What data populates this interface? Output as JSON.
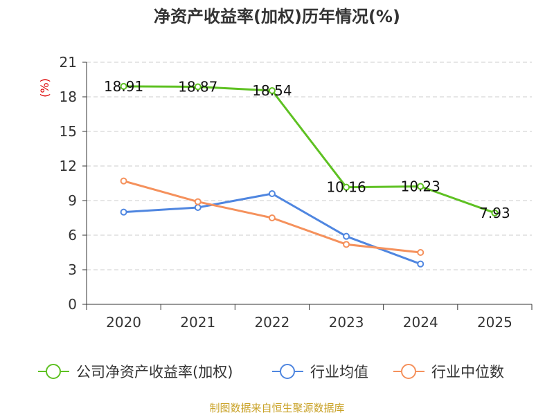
{
  "chart_data": {
    "type": "line",
    "title": "净资产收益率(加权)历年情况(%)",
    "ylabel": "(%)",
    "xlabel": "",
    "categories": [
      "2020",
      "2021",
      "2022",
      "2023",
      "2024",
      "2025"
    ],
    "ylim": [
      0,
      21
    ],
    "yticks": [
      "0",
      "3",
      "6",
      "9",
      "12",
      "15",
      "18",
      "21"
    ],
    "grid": true,
    "legend_position": "bottom",
    "series": [
      {
        "name": "公司净资产收益率(加权)",
        "color": "#5ec122",
        "values": [
          18.91,
          18.87,
          18.54,
          10.16,
          10.23,
          7.93
        ],
        "labels": [
          "18.91",
          "18.87",
          "18.54",
          "10.16",
          "10.23",
          "7.93"
        ]
      },
      {
        "name": "行业均值",
        "color": "#4f86e0",
        "values": [
          8.0,
          8.4,
          9.6,
          5.9,
          3.5,
          null
        ]
      },
      {
        "name": "行业中位数",
        "color": "#f5915c",
        "values": [
          10.7,
          8.9,
          7.5,
          5.2,
          4.5,
          null
        ]
      }
    ]
  },
  "footer": {
    "source": "制图数据来自恒生聚源数据库"
  }
}
